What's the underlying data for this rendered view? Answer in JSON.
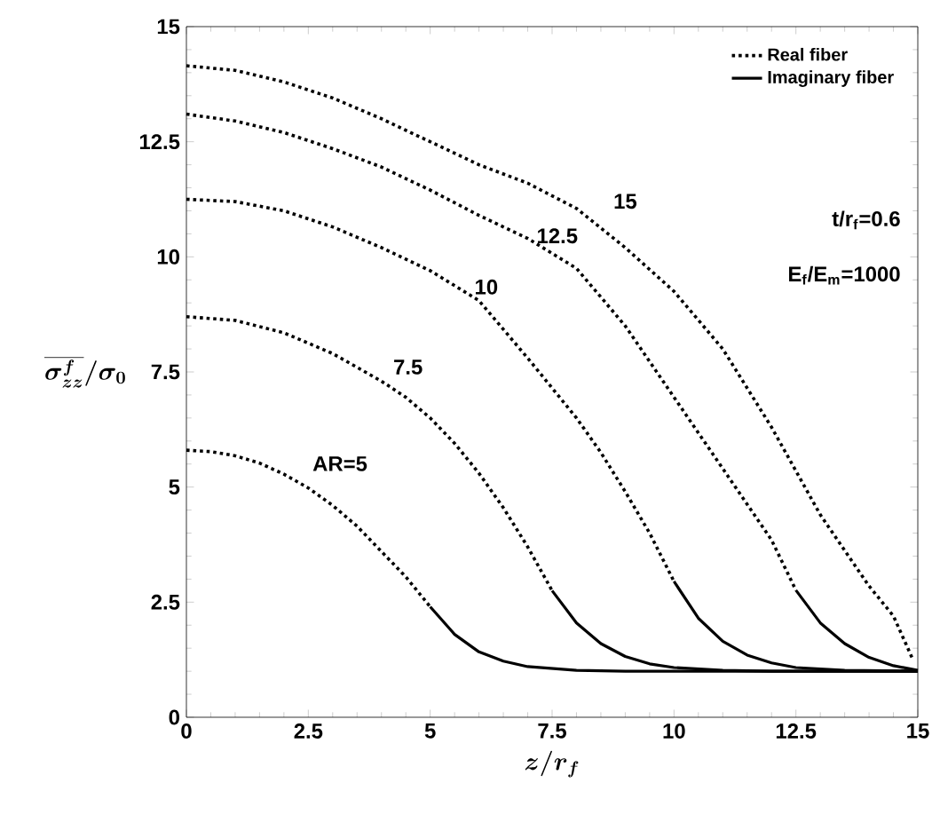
{
  "chart_data": {
    "type": "line",
    "xlabel": "z/r_{f}",
    "ylabel": "\\overline{\\sigma_{zz}^{f}}\\Big/\\sigma_{0}",
    "xlim": [
      0,
      15
    ],
    "ylim": [
      0,
      15
    ],
    "xticks": [
      0,
      2.5,
      5,
      7.5,
      10,
      12.5,
      15
    ],
    "yticks": [
      0,
      2.5,
      5,
      7.5,
      10,
      12.5,
      15
    ],
    "grid": false,
    "legend": "top right",
    "series": [
      {
        "name": "Real fiber",
        "color": "#000000",
        "line_style": "dotted",
        "x": [
          0,
          0.5,
          1,
          1.5,
          2,
          2.5,
          3,
          3.5,
          4,
          4.5,
          5
        ],
        "values": [
          5.8,
          5.77,
          5.68,
          5.52,
          5.28,
          4.98,
          4.6,
          4.15,
          3.6,
          3.05,
          2.4
        ]
      },
      {
        "color": "#000000",
        "line_style": "dotted",
        "x": [
          0,
          1,
          2,
          3,
          4,
          4.5,
          5,
          5.5,
          6,
          6.5,
          7,
          7.5
        ],
        "values": [
          8.7,
          8.62,
          8.35,
          7.9,
          7.3,
          6.95,
          6.5,
          5.95,
          5.3,
          4.55,
          3.7,
          2.75
        ]
      },
      {
        "color": "#000000",
        "line_style": "dotted",
        "x": [
          0,
          1,
          2,
          3,
          4,
          5,
          6,
          7,
          8,
          8.5,
          9,
          9.5,
          10
        ],
        "values": [
          11.25,
          11.2,
          11.0,
          10.65,
          10.2,
          9.7,
          9.05,
          7.8,
          6.5,
          5.75,
          4.9,
          4.0,
          2.95
        ]
      },
      {
        "color": "#000000",
        "line_style": "dotted",
        "x": [
          0,
          1,
          2,
          3,
          4,
          5,
          6,
          7,
          8,
          9,
          10,
          11,
          12,
          12.5
        ],
        "values": [
          13.1,
          12.95,
          12.7,
          12.35,
          11.95,
          11.45,
          10.9,
          10.4,
          9.75,
          8.5,
          6.95,
          5.4,
          3.85,
          2.76
        ]
      },
      {
        "color": "#000000",
        "line_style": "dotted",
        "x": [
          0,
          1,
          2,
          3,
          4,
          5,
          6,
          7,
          8,
          9,
          10,
          11,
          12,
          13,
          14,
          14.5,
          14.9
        ],
        "values": [
          14.15,
          14.05,
          13.8,
          13.45,
          13.0,
          12.5,
          12.0,
          11.6,
          11.05,
          10.2,
          9.25,
          8.0,
          6.3,
          4.4,
          2.85,
          2.2,
          1.25
        ]
      },
      {
        "name": "Imaginary fiber",
        "color": "#000000",
        "line_style": "solid",
        "x": [
          5,
          5.5,
          6,
          6.5,
          7,
          8,
          9,
          10,
          15
        ],
        "values": [
          2.4,
          1.8,
          1.42,
          1.22,
          1.1,
          1.02,
          1.0,
          1.0,
          1.0
        ]
      },
      {
        "color": "#000000",
        "line_style": "solid",
        "x": [
          7.5,
          8,
          8.5,
          9,
          9.5,
          10,
          11,
          12,
          15
        ],
        "values": [
          2.75,
          2.05,
          1.6,
          1.32,
          1.16,
          1.08,
          1.02,
          1.0,
          1.0
        ]
      },
      {
        "color": "#000000",
        "line_style": "solid",
        "x": [
          10,
          10.5,
          11,
          11.5,
          12,
          12.5,
          13.5,
          15
        ],
        "values": [
          2.95,
          2.15,
          1.65,
          1.35,
          1.18,
          1.08,
          1.02,
          1.0
        ]
      },
      {
        "color": "#000000",
        "line_style": "solid",
        "x": [
          12.5,
          13,
          13.5,
          14,
          14.5,
          15
        ],
        "values": [
          2.76,
          2.05,
          1.6,
          1.3,
          1.12,
          1.02
        ]
      }
    ],
    "annotations": [
      "AR=5",
      "7.5",
      "10",
      "12.5",
      "15",
      "t/r$_{f}$=0.6",
      "E$_{f}$/E$_{m}$=1000"
    ]
  }
}
